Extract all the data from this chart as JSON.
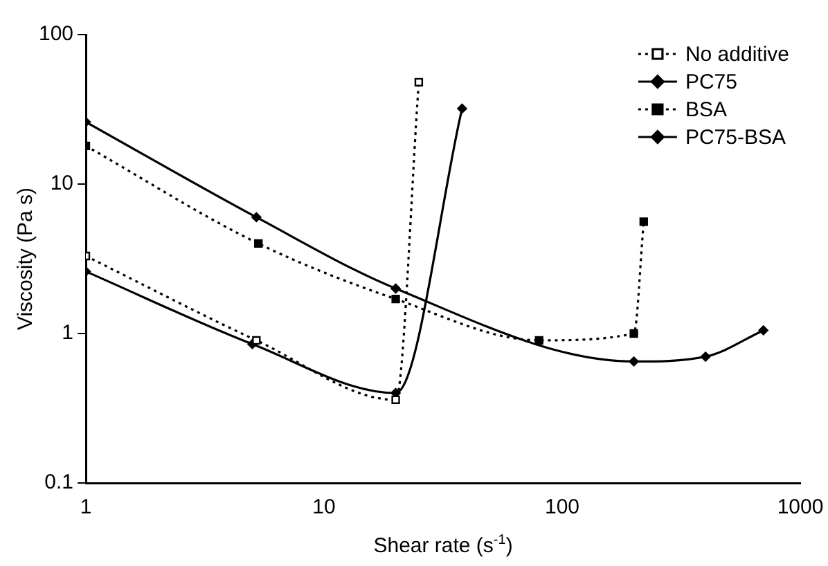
{
  "chart_data": {
    "type": "line",
    "xlabel": "Shear rate (s$^{-1}$)",
    "ylabel": "Viscosity (Pa s)",
    "log": "xy",
    "xlim": [
      1,
      1000
    ],
    "xticks": [
      1,
      10,
      100,
      1000
    ],
    "ylim": [
      0.1,
      100
    ],
    "yticks": [
      0.1,
      1,
      10,
      100
    ],
    "grid": false,
    "legend": "top right",
    "series": [
      {
        "name": "No additive",
        "color": "#000000",
        "marker": "square-open",
        "line_style": "dotted",
        "x": [
          1,
          5.2,
          20,
          25
        ],
        "values": [
          3.3,
          0.9,
          0.36,
          48
        ]
      },
      {
        "name": "PC75",
        "color": "#000000",
        "marker": "diamond",
        "line_style": "solid",
        "x": [
          1,
          5,
          20,
          38
        ],
        "values": [
          2.6,
          0.85,
          0.4,
          32
        ]
      },
      {
        "name": "BSA",
        "color": "#000000",
        "marker": "square",
        "line_style": "dotted",
        "x": [
          1,
          5.3,
          20,
          80,
          200,
          220
        ],
        "values": [
          18,
          4,
          1.7,
          0.9,
          1.0,
          5.6
        ]
      },
      {
        "name": "PC75-BSA",
        "color": "#000000",
        "marker": "diamond",
        "line_style": "solid",
        "x": [
          1,
          5.2,
          20,
          200,
          400,
          700
        ],
        "values": [
          26,
          6,
          2,
          0.65,
          0.7,
          1.05
        ]
      }
    ]
  }
}
